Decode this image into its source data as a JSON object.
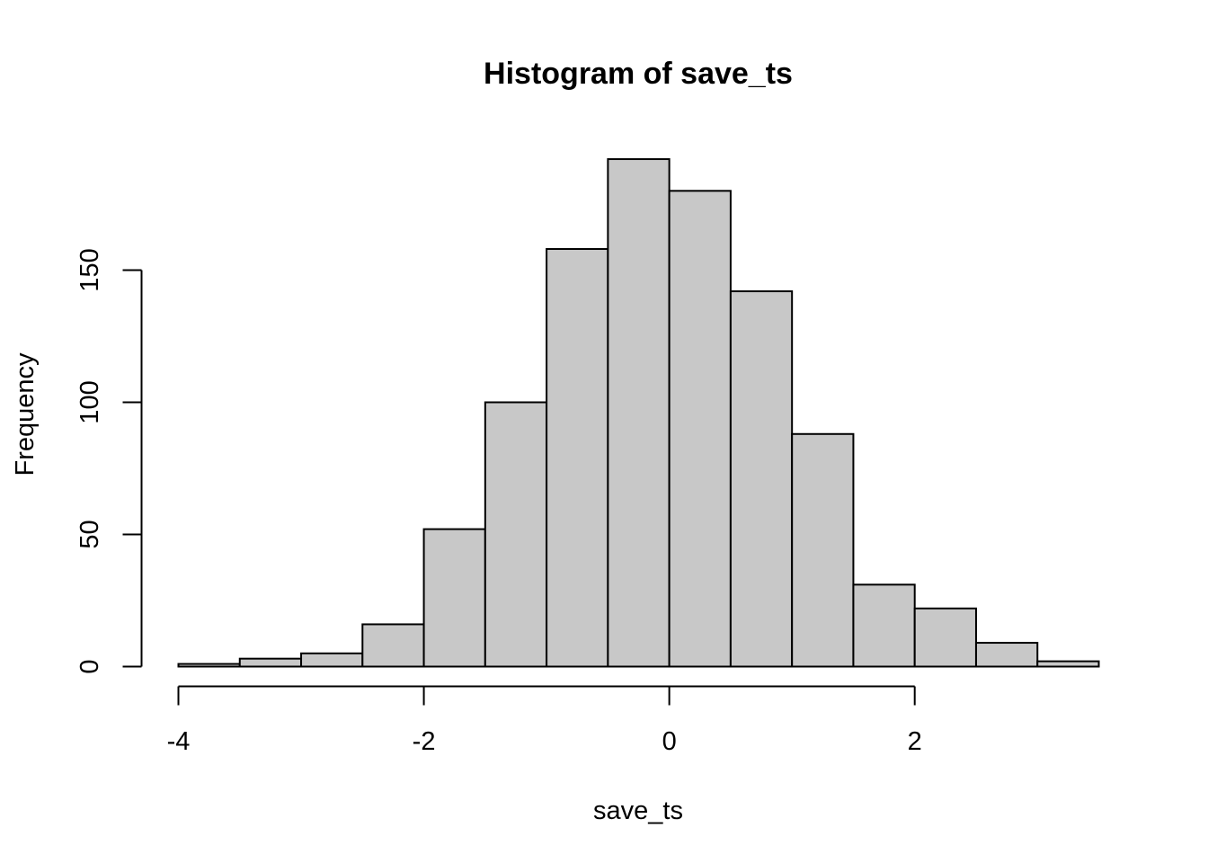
{
  "chart_data": {
    "type": "bar",
    "title": "Histogram of save_ts",
    "xlabel": "save_ts",
    "ylabel": "Frequency",
    "bin_edges": [
      -4,
      -3.5,
      -3,
      -2.5,
      -2,
      -1.5,
      -1,
      -0.5,
      0,
      0.5,
      1,
      1.5,
      2,
      2.5,
      3,
      3.5
    ],
    "values": [
      1,
      3,
      5,
      16,
      52,
      100,
      158,
      192,
      180,
      142,
      88,
      31,
      22,
      9,
      2
    ],
    "xlim": [
      -4,
      3.5
    ],
    "ylim": [
      0,
      200
    ],
    "x_ticks": [
      -4,
      -2,
      0,
      2
    ],
    "x_tick_labels": [
      "-4",
      "-2",
      "0",
      "2"
    ],
    "y_ticks": [
      0,
      50,
      100,
      150
    ],
    "y_tick_labels": [
      "0",
      "50",
      "100",
      "150"
    ],
    "grid": false,
    "bar_color": "#c8c8c8",
    "edge_color": "#000000"
  }
}
